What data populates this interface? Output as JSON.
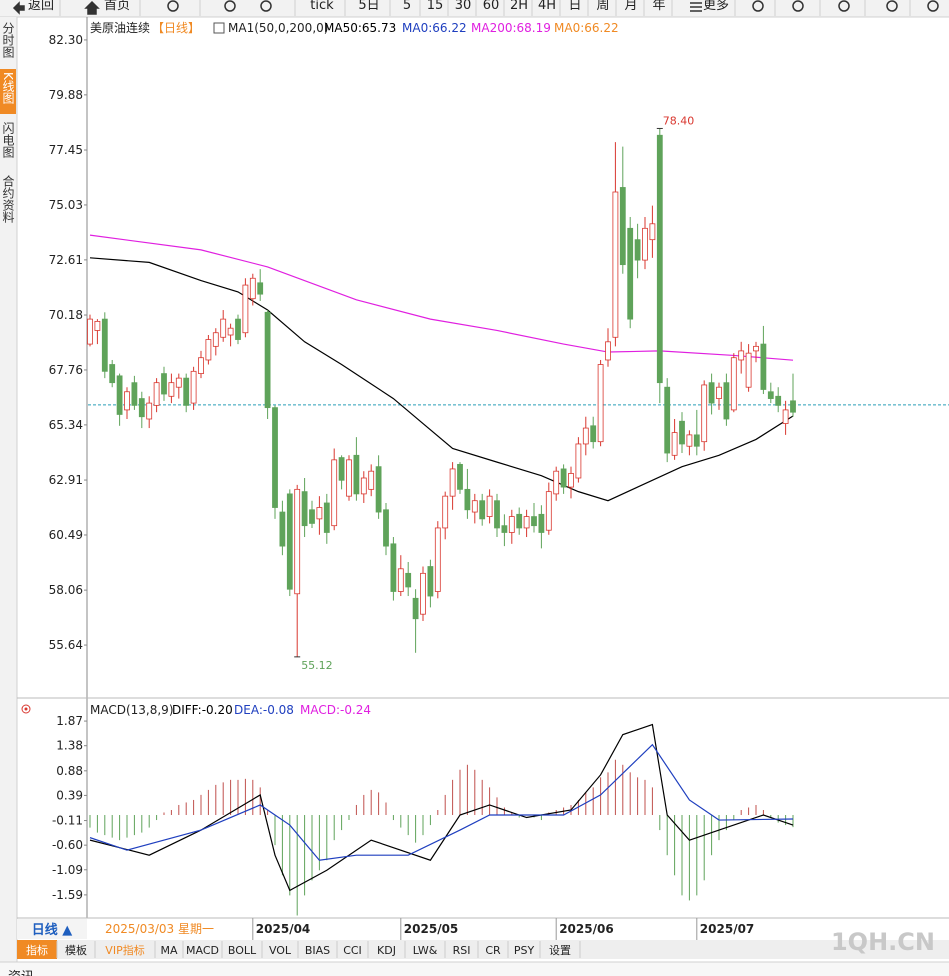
{
  "toolbar": [
    "返回",
    "首页",
    "tick",
    "5日",
    "5",
    "15",
    "30",
    "60",
    "2H",
    "4H",
    "日",
    "周",
    "月",
    "年",
    "更多"
  ],
  "sidebar": [
    "分时图",
    "K线图",
    "闪电图",
    "合约资料"
  ],
  "sidebar_selected": 1,
  "period_button": "日线 ▲",
  "cursor_date": "2025/03/03 星期一",
  "tabs": [
    "指标",
    "模板",
    "VIP指标",
    "MA",
    "MACD",
    "BOLL",
    "VOL",
    "BIAS",
    "CCI",
    "KDJ",
    "LW&",
    "RSI",
    "CR",
    "PSY",
    "设置"
  ],
  "tabs_selected": 0,
  "watermark": "1QH.CN",
  "footer": "资讯",
  "chart_data": [
    {
      "type": "candlestick",
      "title": "美原油连续",
      "period": "【日线】",
      "indicator": "MA1(50,0,200,0)",
      "legend": [
        {
          "text": "MA50:65.73",
          "color": "#000000"
        },
        {
          "text": "MA0:66.22",
          "color": "#1f3fbf"
        },
        {
          "text": "MA200:68.19",
          "color": "#e020e0"
        },
        {
          "text": "MA0:66.22",
          "color": "#f08a24"
        }
      ],
      "up_color": "#d9372f",
      "down_color": "#5fa35a",
      "open": [
        68.9,
        69.5,
        70.0,
        68.0,
        67.5,
        66.0,
        67.2,
        66.5,
        65.6,
        66.2,
        67.6,
        66.6,
        67.0,
        67.4,
        66.3,
        67.6,
        68.2,
        68.8,
        69.2,
        69.3,
        70.0,
        69.4,
        70.9,
        71.6,
        70.3,
        66.1,
        61.5,
        62.3,
        57.9,
        62.4,
        61.6,
        61.2,
        61.9,
        60.9,
        63.9,
        62.2,
        64.0,
        62.3,
        62.5,
        63.5,
        61.6,
        60.1,
        58.0,
        58.8,
        57.7,
        57.0,
        59.1,
        58.0,
        60.8,
        62.2,
        63.6,
        62.5,
        61.5,
        62.0,
        61.3,
        62.0,
        60.9,
        60.6,
        61.4,
        60.8,
        61.3,
        61.4,
        60.7,
        62.3,
        63.4,
        62.6,
        63.0,
        64.5,
        65.3,
        64.6,
        68.2,
        69.2,
        75.8,
        74.0,
        73.5,
        72.6,
        73.5,
        78.1,
        67.0,
        64.0,
        65.5,
        64.4,
        64.9,
        64.6,
        67.2,
        66.5,
        67.2,
        66.0,
        68.2,
        67.0,
        68.6,
        68.9,
        66.8,
        66.6,
        65.4,
        66.4
      ],
      "high": [
        70.2,
        70.0,
        70.3,
        68.2,
        67.6,
        67.0,
        67.5,
        66.8,
        66.6,
        67.4,
        67.9,
        67.6,
        67.6,
        67.6,
        67.9,
        68.6,
        69.3,
        69.6,
        70.4,
        69.8,
        70.2,
        71.8,
        72.0,
        72.2,
        70.4,
        66.2,
        62.0,
        62.5,
        62.7,
        63.0,
        62.0,
        62.2,
        62.3,
        64.3,
        64.0,
        64.0,
        64.8,
        63.3,
        63.6,
        64.0,
        61.9,
        60.4,
        59.6,
        59.3,
        58.1,
        59.1,
        59.4,
        61.1,
        62.4,
        63.7,
        63.7,
        63.4,
        62.3,
        62.3,
        62.5,
        62.3,
        61.4,
        61.6,
        61.7,
        61.6,
        61.9,
        61.8,
        62.8,
        63.5,
        63.6,
        63.5,
        64.8,
        65.7,
        65.7,
        68.2,
        69.6,
        77.8,
        77.6,
        74.5,
        74.2,
        74.5,
        75.0,
        78.4,
        67.4,
        65.6,
        65.9,
        65.1,
        66.0,
        67.3,
        67.6,
        67.2,
        67.6,
        68.5,
        69.0,
        68.9,
        69.0,
        69.7,
        67.2,
        67.0,
        66.4,
        67.6
      ],
      "low": [
        68.8,
        68.9,
        67.4,
        67.0,
        65.3,
        65.6,
        66.0,
        65.2,
        65.2,
        65.9,
        66.4,
        66.3,
        66.5,
        65.9,
        66.0,
        67.4,
        68.0,
        68.4,
        69.0,
        68.8,
        68.9,
        69.2,
        70.6,
        70.8,
        65.6,
        61.2,
        59.6,
        57.8,
        55.12,
        60.4,
        60.8,
        60.5,
        60.1,
        60.7,
        62.5,
        62.0,
        62.0,
        61.9,
        62.2,
        61.2,
        59.6,
        57.6,
        57.8,
        57.8,
        55.3,
        56.7,
        57.3,
        57.7,
        60.3,
        61.6,
        62.3,
        61.2,
        61.0,
        60.9,
        61.0,
        60.4,
        60.0,
        60.1,
        60.5,
        60.4,
        60.6,
        59.9,
        60.5,
        62.0,
        62.3,
        62.1,
        62.8,
        64.0,
        64.3,
        64.4,
        67.9,
        68.8,
        72.0,
        69.6,
        71.8,
        72.2,
        72.7,
        66.3,
        63.7,
        63.8,
        64.1,
        64.0,
        64.0,
        64.2,
        65.8,
        66.0,
        65.3,
        65.9,
        67.6,
        66.8,
        68.1,
        66.7,
        66.3,
        65.9,
        64.9,
        65.7
      ],
      "close": [
        70.0,
        69.9,
        67.7,
        67.2,
        65.8,
        66.8,
        66.2,
        65.7,
        66.3,
        67.2,
        66.7,
        67.2,
        67.4,
        66.2,
        67.7,
        68.3,
        69.1,
        69.4,
        70.0,
        69.6,
        69.1,
        71.5,
        71.8,
        71.1,
        66.1,
        61.7,
        60.0,
        58.1,
        62.5,
        60.9,
        61.0,
        61.7,
        60.6,
        63.8,
        62.9,
        63.8,
        62.3,
        63.0,
        63.3,
        61.5,
        60.0,
        58.0,
        59.0,
        58.2,
        56.8,
        58.8,
        57.8,
        60.8,
        62.2,
        63.4,
        62.5,
        61.6,
        62.0,
        61.2,
        62.2,
        60.8,
        60.6,
        61.3,
        60.8,
        61.3,
        60.9,
        60.6,
        62.4,
        63.3,
        62.6,
        63.2,
        64.5,
        65.2,
        64.6,
        68.0,
        69.0,
        75.6,
        72.4,
        70.0,
        72.6,
        74.0,
        74.2,
        67.2,
        64.1,
        65.0,
        64.5,
        64.9,
        64.4,
        67.1,
        66.3,
        67.0,
        65.6,
        68.3,
        68.6,
        68.5,
        68.8,
        66.9,
        66.5,
        66.2,
        66.0,
        65.9
      ],
      "max_label": "78.40",
      "min_label": "55.12",
      "series": [
        {
          "name": "MA50",
          "color": "#000000",
          "x": [
            0,
            8,
            15,
            20,
            24,
            29,
            34,
            41,
            45,
            49,
            55,
            61,
            66,
            70,
            74,
            80,
            85,
            90,
            95
          ],
          "values": [
            72.7,
            72.5,
            71.7,
            71.2,
            70.4,
            69.0,
            68.0,
            66.5,
            65.4,
            64.3,
            63.7,
            63.1,
            62.4,
            62.0,
            62.6,
            63.5,
            64.0,
            64.7,
            65.73
          ]
        },
        {
          "name": "MA200",
          "color": "#e020e0",
          "x": [
            0,
            15,
            24,
            36,
            46,
            55,
            64,
            70,
            77,
            87,
            95
          ],
          "values": [
            73.7,
            73.05,
            72.3,
            70.85,
            70.0,
            69.5,
            68.9,
            68.55,
            68.6,
            68.4,
            68.19
          ]
        }
      ],
      "reference_line": {
        "value": 66.22,
        "color": "#2a9fb8"
      },
      "ylim": [
        53.44,
        83.09
      ],
      "yticks": [
        {
          "value": 82.3,
          "label": "82.30"
        },
        79.88,
        77.45,
        75.03,
        72.61,
        70.18,
        67.76,
        65.34,
        62.91,
        60.49,
        58.06,
        55.64
      ],
      "xticks": [
        {
          "value": 22,
          "label": "2025/04"
        },
        {
          "value": 42,
          "label": "2025/05"
        },
        {
          "value": 63,
          "label": "2025/06"
        },
        {
          "value": 82,
          "label": "2025/07"
        }
      ],
      "grid": false
    },
    {
      "type": "macd",
      "title": "MACD(13,8,9)",
      "legend": [
        {
          "text": "DIFF:-0.20",
          "color": "#000000"
        },
        {
          "text": "DEA:-0.08",
          "color": "#1f3fbf"
        },
        {
          "text": "MACD:-0.24",
          "color": "#e020e0"
        }
      ],
      "up_color": "#c0504d",
      "down_color": "#5fa35a",
      "values": [
        -0.25,
        -0.35,
        -0.4,
        -0.45,
        -0.5,
        -0.45,
        -0.4,
        -0.35,
        -0.25,
        -0.1,
        0.05,
        0.1,
        0.2,
        0.25,
        0.3,
        0.4,
        0.5,
        0.6,
        0.65,
        0.7,
        0.7,
        0.72,
        0.7,
        0.55,
        0.1,
        -0.6,
        -1.2,
        -1.6,
        -2.0,
        -1.6,
        -1.3,
        -1.1,
        -0.9,
        -0.5,
        -0.3,
        -0.1,
        0.2,
        0.4,
        0.5,
        0.45,
        0.25,
        -0.1,
        -0.25,
        -0.4,
        -0.55,
        -0.4,
        -0.2,
        0.1,
        0.4,
        0.7,
        0.9,
        1.0,
        0.9,
        0.7,
        0.55,
        0.35,
        0.15,
        0.05,
        -0.05,
        0.0,
        -0.05,
        -0.1,
        0.05,
        0.1,
        0.15,
        0.2,
        0.3,
        0.45,
        0.55,
        0.75,
        0.85,
        1.1,
        1.0,
        0.85,
        0.75,
        0.7,
        0.55,
        -0.3,
        -0.8,
        -1.2,
        -1.6,
        -1.7,
        -1.6,
        -1.3,
        -0.8,
        -0.5,
        -0.3,
        -0.1,
        0.1,
        0.15,
        0.2,
        0.1,
        -0.05,
        -0.15,
        -0.2,
        -0.24
      ],
      "series": [
        {
          "name": "DIFF",
          "color": "#000000",
          "x": [
            0,
            8,
            15,
            23,
            25,
            27,
            32,
            38,
            46,
            50,
            54,
            59,
            65,
            69,
            72,
            76,
            78,
            81,
            85,
            91,
            95
          ],
          "values": [
            -0.5,
            -0.8,
            -0.3,
            0.4,
            -0.8,
            -1.5,
            -1.1,
            -0.5,
            -0.9,
            0.0,
            0.2,
            -0.05,
            0.1,
            0.8,
            1.6,
            1.8,
            0.0,
            -0.5,
            -0.3,
            0.0,
            -0.2
          ]
        },
        {
          "name": "DEA",
          "color": "#1f3fbf",
          "x": [
            0,
            5,
            15,
            23,
            27,
            31,
            36,
            43,
            50,
            54,
            64,
            69,
            76,
            81,
            85,
            95
          ],
          "values": [
            -0.45,
            -0.7,
            -0.3,
            0.2,
            -0.2,
            -0.9,
            -0.8,
            -0.8,
            -0.3,
            0.0,
            0.0,
            0.4,
            1.4,
            0.3,
            -0.1,
            -0.08
          ]
        }
      ],
      "ylim": [
        -2.05,
        2.19
      ],
      "yticks": [
        1.87,
        1.38,
        0.88,
        0.39,
        -0.11,
        {
          "value": -0.6,
          "label": "-0.60"
        },
        -1.09,
        -1.59
      ],
      "grid": false
    }
  ]
}
